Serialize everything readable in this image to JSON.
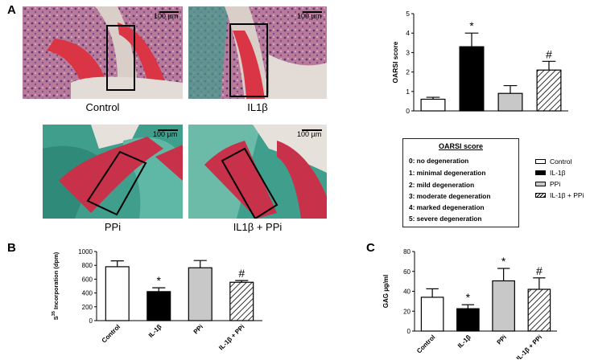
{
  "panels": {
    "a": "A",
    "b": "B",
    "c": "C"
  },
  "micrographs": [
    {
      "caption": "Control",
      "scale": "100 µm"
    },
    {
      "caption": "IL1β",
      "scale": "100 µm"
    },
    {
      "caption": "PPi",
      "scale": "100 µm"
    },
    {
      "caption": "IL1β + PPi",
      "scale": "100 µm"
    }
  ],
  "oarsi_legend": {
    "title": "OARSI score",
    "rows": [
      "0: no degeneration",
      "1:  minimal  degeneration",
      "2: mild degeneration",
      "3: moderate degeneration",
      "4: marked degeneration",
      "5: severe degeneration"
    ]
  },
  "series_legend": [
    "Control",
    "IL-1β",
    "PPi",
    "IL-1β + PPi"
  ],
  "colors": {
    "control": "#ffffff",
    "il1b": "#000000",
    "ppi": "#c8c8c8",
    "combo": "hatched",
    "safranin": "#c43a55",
    "fastgreen": "#3f9e8c"
  },
  "chart_data": [
    {
      "type": "bar",
      "panel": "A",
      "categories": [
        "Control",
        "IL-1β",
        "PPi",
        "IL-1β + PPi"
      ],
      "values": [
        0.6,
        3.3,
        0.9,
        2.1
      ],
      "errors": [
        0.1,
        0.7,
        0.4,
        0.45
      ],
      "significance": [
        "",
        "*",
        "",
        "#"
      ],
      "ylabel": "OARSI score",
      "ylim": [
        0,
        5
      ],
      "yticks": [
        "0",
        "1",
        "2",
        "3",
        "4",
        "5"
      ],
      "show_xticklabels": false
    },
    {
      "type": "bar",
      "panel": "B",
      "categories": [
        "Control",
        "IL-1β",
        "PPi",
        "IL-1β + PPi"
      ],
      "values": [
        780,
        420,
        765,
        555
      ],
      "errors": [
        85,
        55,
        105,
        25
      ],
      "significance": [
        "",
        "*",
        "",
        "#"
      ],
      "ylabel": "S35 Incorporation (dpm)",
      "ylabel_parts": {
        "base": "S",
        "sup": "35",
        "rest": " Incorporation (dpm)"
      },
      "ylim": [
        0,
        1000
      ],
      "yticks": [
        "0",
        "200",
        "400",
        "600",
        "800",
        "1000"
      ],
      "show_xticklabels": true
    },
    {
      "type": "bar",
      "panel": "C",
      "categories": [
        "Control",
        "IL-1β",
        "PPi",
        "IL-1β + PPi"
      ],
      "values": [
        34,
        22.5,
        50.5,
        42
      ],
      "errors": [
        8.5,
        4,
        12.5,
        11.5
      ],
      "significance": [
        "",
        "*",
        "*",
        "#"
      ],
      "ylabel": "GAG µg/ml",
      "ylim": [
        0,
        80
      ],
      "yticks": [
        "0",
        "20",
        "40",
        "60",
        "80"
      ],
      "show_xticklabels": true
    }
  ]
}
